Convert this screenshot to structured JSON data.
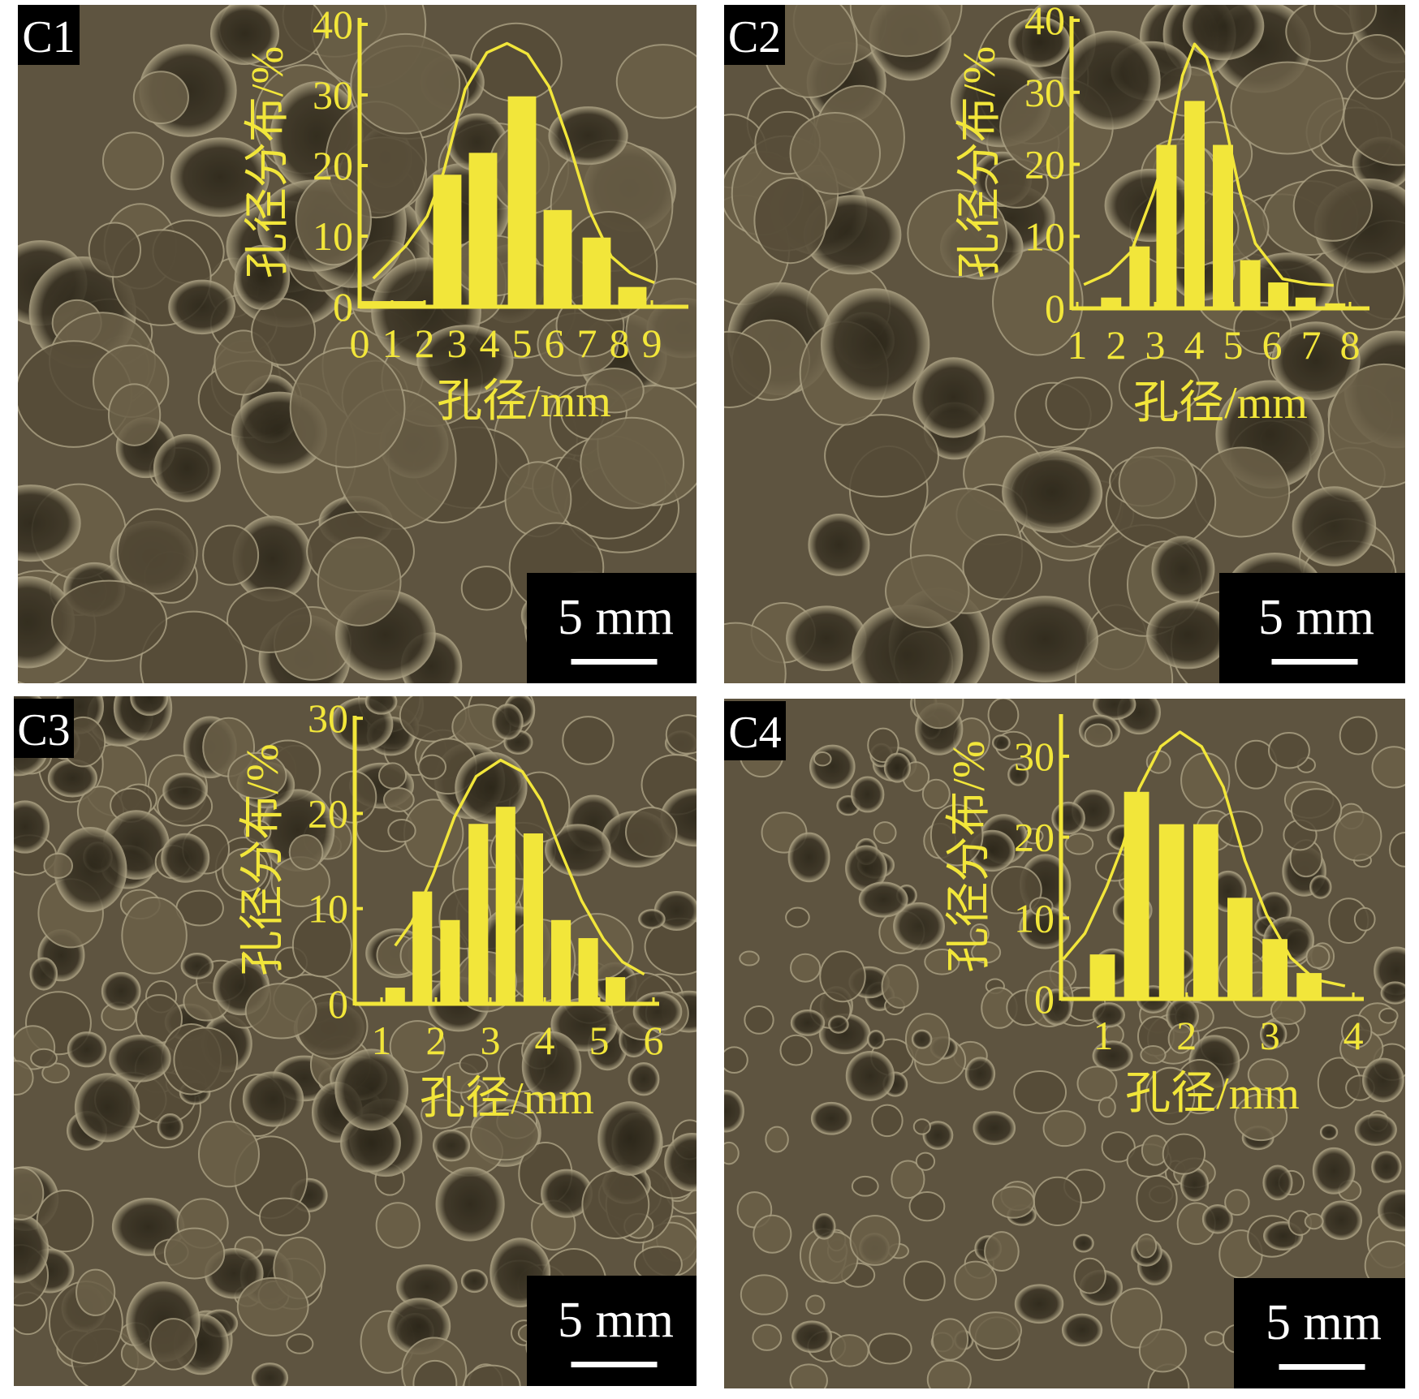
{
  "colors": {
    "chart": "#f2e63a",
    "background": "#5e5440",
    "label_box": "#000000",
    "label_text": "#ffffff"
  },
  "panels": [
    {
      "label": "C1",
      "scale_bar": "5 mm"
    },
    {
      "label": "C2",
      "scale_bar": "5 mm"
    },
    {
      "label": "C3",
      "scale_bar": "5 mm"
    },
    {
      "label": "C4",
      "scale_bar": "5 mm"
    }
  ],
  "chart_data": [
    {
      "type": "bar",
      "panel": "C1",
      "xlabel": "孔径/mm",
      "ylabel": "孔径分布/%",
      "xlim": [
        0,
        9
      ],
      "ylim": [
        0,
        40
      ],
      "xticks": [
        "0",
        "1",
        "2",
        "3",
        "4",
        "5",
        "6",
        "7",
        "8",
        "9"
      ],
      "yticks": [
        "0",
        "10",
        "20",
        "30",
        "40"
      ],
      "bars": [
        {
          "x": 1.0,
          "width": 2.0,
          "value": 0.8
        },
        {
          "x": 2.7,
          "width": 0.87,
          "value": 18.7
        },
        {
          "x": 3.8,
          "width": 0.87,
          "value": 21.8
        },
        {
          "x": 5.0,
          "width": 0.87,
          "value": 29.8
        },
        {
          "x": 6.1,
          "width": 0.87,
          "value": 13.7
        },
        {
          "x": 7.3,
          "width": 0.87,
          "value": 9.8
        },
        {
          "x": 8.4,
          "width": 0.87,
          "value": 2.8
        }
      ],
      "fit_curve": [
        [
          0.42,
          4.0
        ],
        [
          1.42,
          8.6
        ],
        [
          2.08,
          12.8
        ],
        [
          2.58,
          19.0
        ],
        [
          3.25,
          30.8
        ],
        [
          3.92,
          36.0
        ],
        [
          4.54,
          37.3
        ],
        [
          5.17,
          35.8
        ],
        [
          5.83,
          31.2
        ],
        [
          6.42,
          23.6
        ],
        [
          7.08,
          13.6
        ],
        [
          7.75,
          7.1
        ],
        [
          8.33,
          4.8
        ],
        [
          9.08,
          3.4
        ]
      ]
    },
    {
      "type": "bar",
      "panel": "C2",
      "xlabel": "孔径/mm",
      "ylabel": "孔径分布/%",
      "xlim": [
        1,
        8
      ],
      "ylim": [
        0,
        40
      ],
      "xticks": [
        "1",
        "2",
        "3",
        "4",
        "5",
        "6",
        "7",
        "8"
      ],
      "yticks": [
        "0",
        "10",
        "20",
        "30",
        "40"
      ],
      "bars": [
        {
          "x": 1.87,
          "width": 0.52,
          "value": 1.5
        },
        {
          "x": 2.6,
          "width": 0.52,
          "value": 8.6
        },
        {
          "x": 3.29,
          "width": 0.52,
          "value": 22.7
        },
        {
          "x": 4.01,
          "width": 0.52,
          "value": 28.8
        },
        {
          "x": 4.74,
          "width": 0.52,
          "value": 22.7
        },
        {
          "x": 5.44,
          "width": 0.52,
          "value": 6.7
        },
        {
          "x": 6.16,
          "width": 0.52,
          "value": 3.6
        },
        {
          "x": 6.86,
          "width": 0.52,
          "value": 1.5
        },
        {
          "x": 7.62,
          "width": 0.52,
          "value": 0.7
        }
      ],
      "fit_curve": [
        [
          1.17,
          3.3
        ],
        [
          1.83,
          4.9
        ],
        [
          2.39,
          7.9
        ],
        [
          2.94,
          15.8
        ],
        [
          3.36,
          22.9
        ],
        [
          3.7,
          32.3
        ],
        [
          4.01,
          36.7
        ],
        [
          4.32,
          34.8
        ],
        [
          4.74,
          27.1
        ],
        [
          5.16,
          16.5
        ],
        [
          5.57,
          9.0
        ],
        [
          6.27,
          4.1
        ],
        [
          6.96,
          3.4
        ],
        [
          7.58,
          3.2
        ]
      ]
    },
    {
      "type": "bar",
      "panel": "C3",
      "xlabel": "孔径/mm",
      "ylabel": "孔径分布/%",
      "xlim": [
        0.5,
        6
      ],
      "ylim": [
        0,
        30
      ],
      "xticks": [
        "1",
        "2",
        "3",
        "4",
        "5",
        "6"
      ],
      "yticks": [
        "0",
        "10",
        "20",
        "30"
      ],
      "bars": [
        {
          "x": 1.25,
          "width": 0.36,
          "value": 1.7
        },
        {
          "x": 1.75,
          "width": 0.36,
          "value": 11.8
        },
        {
          "x": 2.26,
          "width": 0.36,
          "value": 8.8
        },
        {
          "x": 2.78,
          "width": 0.36,
          "value": 18.9
        },
        {
          "x": 3.28,
          "width": 0.36,
          "value": 20.7
        },
        {
          "x": 3.79,
          "width": 0.36,
          "value": 17.9
        },
        {
          "x": 4.3,
          "width": 0.36,
          "value": 8.8
        },
        {
          "x": 4.8,
          "width": 0.36,
          "value": 6.9
        },
        {
          "x": 5.3,
          "width": 0.36,
          "value": 2.8
        }
      ],
      "fit_curve": [
        [
          1.25,
          6.1
        ],
        [
          1.55,
          8.5
        ],
        [
          1.95,
          13.6
        ],
        [
          2.34,
          19.6
        ],
        [
          2.74,
          23.9
        ],
        [
          3.19,
          25.6
        ],
        [
          3.59,
          24.4
        ],
        [
          3.94,
          21.3
        ],
        [
          4.28,
          16.2
        ],
        [
          4.68,
          10.8
        ],
        [
          5.08,
          6.8
        ],
        [
          5.43,
          4.4
        ],
        [
          5.83,
          3.1
        ]
      ]
    },
    {
      "type": "bar",
      "panel": "C4",
      "xlabel": "孔径/mm",
      "ylabel": "孔径分布/%",
      "xlim": [
        0.5,
        4
      ],
      "ylim": [
        0,
        33.5
      ],
      "xticks": [
        "1",
        "2",
        "3",
        "4"
      ],
      "yticks": [
        "0",
        "10",
        "20",
        "30"
      ],
      "bars": [
        {
          "x": 0.99,
          "width": 0.3,
          "value": 5.5
        },
        {
          "x": 1.4,
          "width": 0.3,
          "value": 25.6
        },
        {
          "x": 1.82,
          "width": 0.3,
          "value": 21.6
        },
        {
          "x": 2.23,
          "width": 0.3,
          "value": 21.6
        },
        {
          "x": 2.64,
          "width": 0.3,
          "value": 12.5
        },
        {
          "x": 3.06,
          "width": 0.3,
          "value": 7.4
        },
        {
          "x": 3.47,
          "width": 0.3,
          "value": 3.2
        }
      ],
      "fit_curve": [
        [
          0.52,
          4.9
        ],
        [
          0.78,
          8.1
        ],
        [
          1.04,
          13.8
        ],
        [
          1.24,
          19.1
        ],
        [
          1.43,
          26.0
        ],
        [
          1.69,
          31.2
        ],
        [
          1.92,
          33.0
        ],
        [
          2.18,
          31.2
        ],
        [
          2.44,
          26.2
        ],
        [
          2.7,
          17.1
        ],
        [
          2.96,
          10.4
        ],
        [
          3.25,
          5.1
        ],
        [
          3.54,
          2.4
        ],
        [
          3.9,
          1.6
        ]
      ]
    }
  ]
}
